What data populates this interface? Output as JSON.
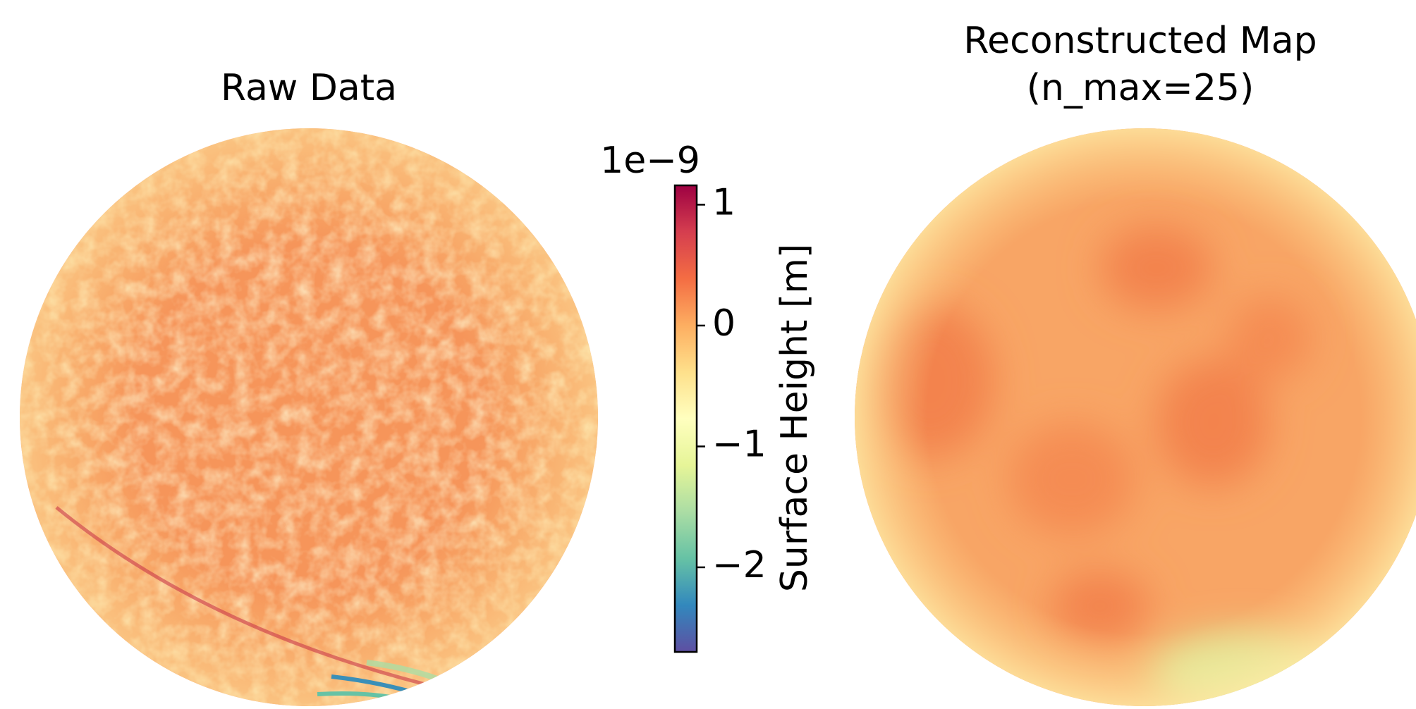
{
  "chart_data": [
    {
      "type": "image",
      "title": "Raw Data"
    },
    {
      "type": "image",
      "title": [
        "Reconstructed Map",
        "(n_max=25)"
      ]
    },
    {
      "type": "colorbar",
      "label": "Surface Height [m]",
      "offset_text": "1e−9",
      "clim": [
        -2.7,
        1.16
      ],
      "ticks": [
        {
          "value": -2,
          "label": "−2"
        },
        {
          "value": -1,
          "label": "−1"
        },
        0,
        1
      ],
      "colors": [
        "#5e4fa2",
        "#3288bd",
        "#66c2a5",
        "#abdda4",
        "#e6f598",
        "#ffffbf",
        "#fee08b",
        "#fdae61",
        "#f46d43",
        "#d53e4f",
        "#9e0142"
      ]
    }
  ]
}
